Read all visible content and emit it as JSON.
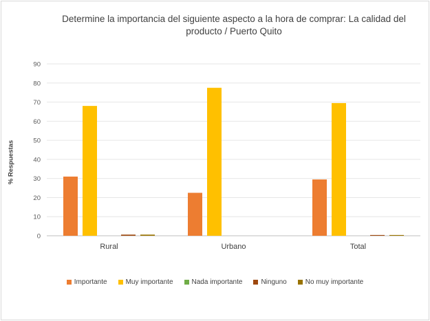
{
  "chart_data": {
    "type": "bar",
    "title": "Determine la importancia del siguiente aspecto a la hora de comprar: La calidad del producto / Puerto Quito",
    "title_lines": [
      "Determine la importancia del siguiente aspecto a la hora de comprar: La calidad del",
      "producto / Puerto Quito"
    ],
    "xlabel": "",
    "ylabel": "% Respuestas",
    "ylim": [
      0,
      90
    ],
    "yticks": [
      0,
      10,
      20,
      30,
      40,
      50,
      60,
      70,
      80,
      90
    ],
    "grid": true,
    "legend_position": "bottom",
    "categories": [
      "Rural",
      "Urbano",
      "Total"
    ],
    "series": [
      {
        "name": "Importante",
        "color": "#ed7d31",
        "values": [
          31,
          22.5,
          29.5
        ]
      },
      {
        "name": "Muy importante",
        "color": "#ffc000",
        "values": [
          68,
          77.5,
          69.5
        ]
      },
      {
        "name": "Nada importante",
        "color": "#70ad47",
        "values": [
          0,
          0,
          0
        ]
      },
      {
        "name": "Ninguno",
        "color": "#9e480e",
        "values": [
          0.6,
          0,
          0.4
        ]
      },
      {
        "name": "No muy importante",
        "color": "#997300",
        "values": [
          0.6,
          0,
          0.4
        ]
      }
    ]
  }
}
